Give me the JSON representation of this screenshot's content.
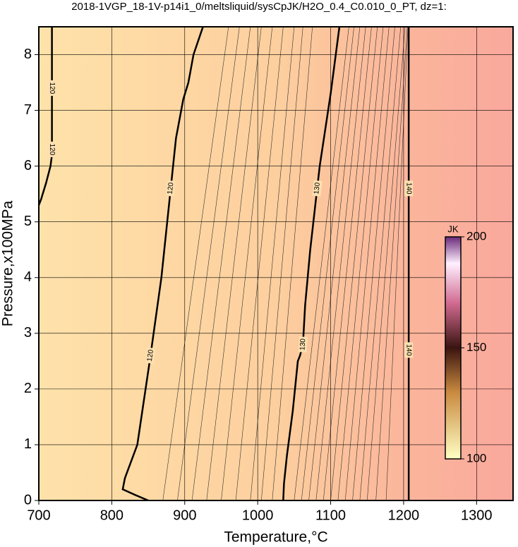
{
  "chart_data": {
    "type": "contour",
    "title": "2018-1VGP_18-1V-p14i1_0/meltsliquid/sysCpJK/H2O_0.4_C0.010_0_PT, dz=1:",
    "x_label": "Temperature,°C",
    "y_label": "Pressure,x100MPa",
    "xlim": [
      700,
      1350
    ],
    "xticks": [
      700,
      800,
      900,
      1000,
      1100,
      1200,
      1300
    ],
    "ylim": [
      0,
      8.5
    ],
    "yticks": [
      0,
      1,
      2,
      3,
      4,
      5,
      6,
      7,
      8
    ],
    "grid": true,
    "contours": [
      {
        "level": 120,
        "x": [
          718,
          718,
          716,
          710,
          703,
          700
        ],
        "y": [
          8.5,
          6.2,
          6.0,
          5.7,
          5.4,
          5.3
        ]
      },
      {
        "level": 120,
        "x": [
          925,
          912,
          905,
          898,
          888,
          880,
          868,
          852,
          835,
          818,
          815,
          832,
          850
        ],
        "y": [
          8.5,
          8.0,
          7.5,
          7.2,
          6.5,
          5.5,
          4.0,
          2.5,
          1.0,
          0.4,
          0.2,
          0.1,
          0
        ]
      },
      {
        "level": 130,
        "x": [
          1112,
          1100,
          1085,
          1072,
          1065,
          1062,
          1058,
          1055,
          1048,
          1040,
          1036,
          1035
        ],
        "y": [
          8.5,
          7.3,
          6.0,
          4.5,
          3.5,
          2.8,
          2.6,
          2.5,
          1.6,
          0.8,
          0.3,
          0
        ]
      },
      {
        "level": 140,
        "x": [
          1207,
          1207
        ],
        "y": [
          8.5,
          0
        ]
      }
    ],
    "minor_contours": {
      "bottom_x": [
        870,
        890,
        910,
        930,
        950,
        970,
        990,
        1005,
        1020,
        1050,
        1060,
        1070,
        1080,
        1090,
        1100,
        1110,
        1120,
        1130,
        1140,
        1150,
        1162,
        1176
      ],
      "top_x": [
        960,
        975,
        990,
        1005,
        1020,
        1035,
        1050,
        1062,
        1075,
        1125,
        1132,
        1140,
        1148,
        1156,
        1164,
        1172,
        1180,
        1188,
        1196,
        1202,
        1205,
        1206
      ]
    },
    "colorbar": {
      "title": "JK",
      "lim": [
        100,
        200
      ],
      "ticks": [
        100,
        150,
        200
      ]
    }
  }
}
